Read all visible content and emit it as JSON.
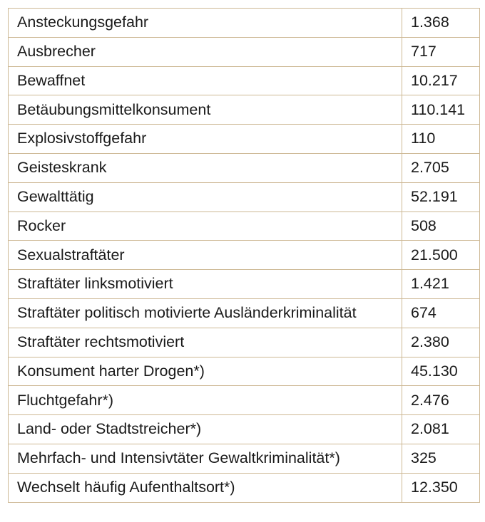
{
  "table": {
    "rows": [
      {
        "label": "Ansteckungsgefahr",
        "value": "1.368"
      },
      {
        "label": "Ausbrecher",
        "value": "717"
      },
      {
        "label": "Bewaffnet",
        "value": "10.217"
      },
      {
        "label": "Betäubungsmittelkonsument",
        "value": "110.141"
      },
      {
        "label": "Explosivstoffgefahr",
        "value": "110"
      },
      {
        "label": "Geisteskrank",
        "value": "2.705"
      },
      {
        "label": "Gewalttätig",
        "value": "52.191"
      },
      {
        "label": "Rocker",
        "value": "508"
      },
      {
        "label": "Sexualstraftäter",
        "value": "21.500"
      },
      {
        "label": "Straftäter linksmotiviert",
        "value": "1.421"
      },
      {
        "label": "Straftäter politisch motivierte Ausländerkriminalität",
        "value": "674"
      },
      {
        "label": "Straftäter rechtsmotiviert",
        "value": "2.380"
      },
      {
        "label": "Konsument harter Drogen*)",
        "value": "45.130"
      },
      {
        "label": "Fluchtgefahr*)",
        "value": "2.476"
      },
      {
        "label": "Land- oder Stadtstreicher*)",
        "value": "2.081"
      },
      {
        "label": "Mehrfach- und Intensivtäter Gewaltkriminalität*)",
        "value": "325"
      },
      {
        "label": "Wechselt häufig Aufenthaltsort*)",
        "value": "12.350"
      }
    ]
  }
}
